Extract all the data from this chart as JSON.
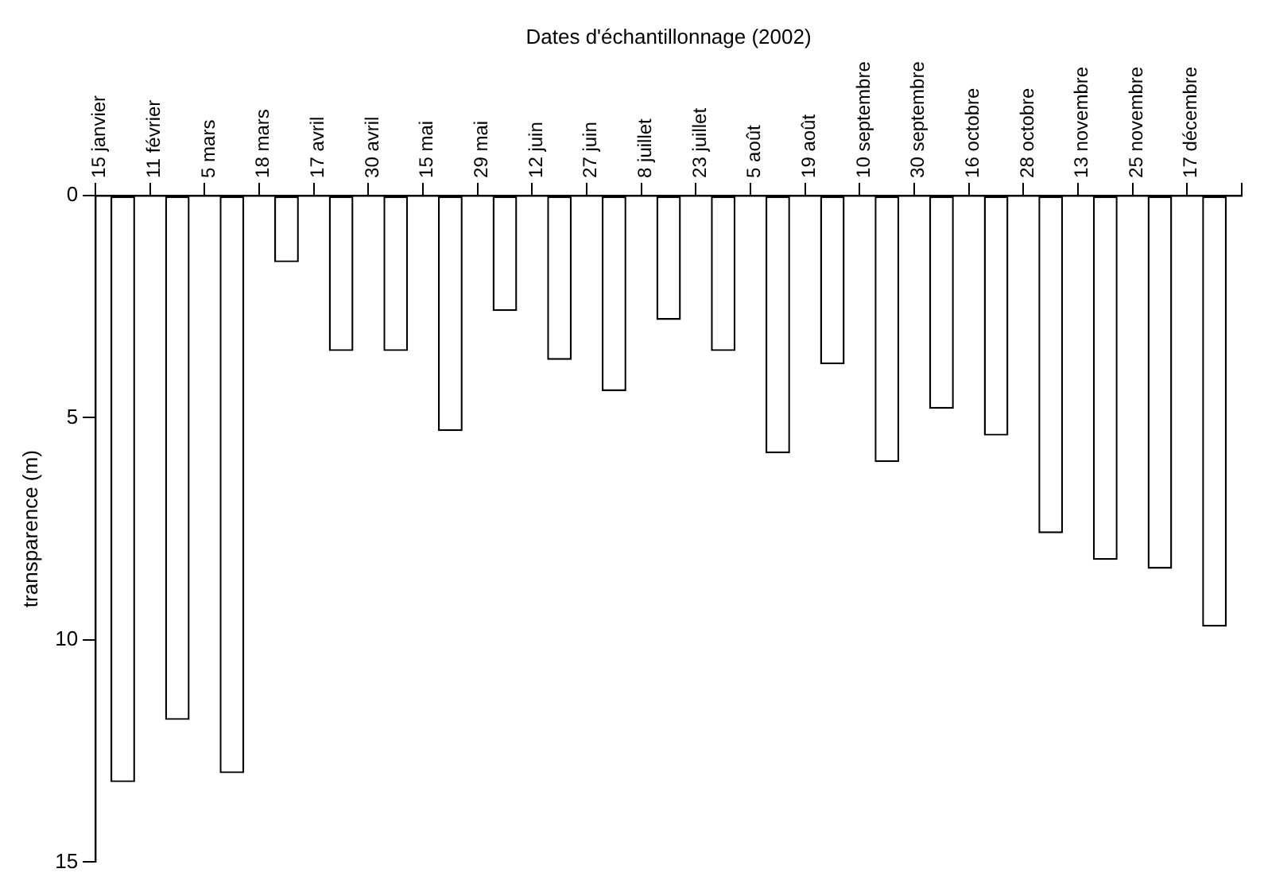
{
  "chart_data": {
    "type": "bar",
    "title": "Dates d'échantillonnage (2002)",
    "ylabel": "transparence (m)",
    "categories": [
      "15 janvier",
      "11 février",
      "5 mars",
      "18 mars",
      "17 avril",
      "30 avril",
      "15 mai",
      "29 mai",
      "12 juin",
      "27 juin",
      "8 juillet",
      "23 juillet",
      "5 août",
      "19 août",
      "10 septembre",
      "30 septembre",
      "16 octobre",
      "28 octobre",
      "13 novembre",
      "25 novembre",
      "17 décembre"
    ],
    "values": [
      13.2,
      11.8,
      13.0,
      1.5,
      3.5,
      3.5,
      5.3,
      2.6,
      3.7,
      4.4,
      2.8,
      3.5,
      5.8,
      3.8,
      6.0,
      4.8,
      5.4,
      7.6,
      8.2,
      8.4,
      9.7
    ],
    "color": "#ffffff",
    "ylim": [
      15,
      0
    ],
    "yticks": [
      0,
      5,
      10,
      15
    ],
    "grid": false,
    "legend": false
  }
}
